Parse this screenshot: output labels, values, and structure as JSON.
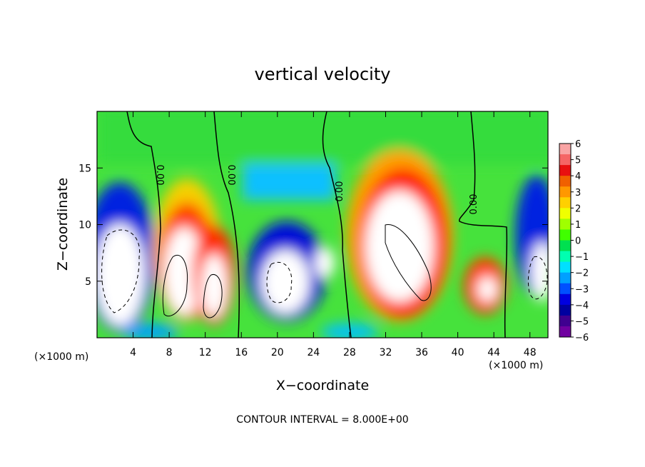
{
  "chart_data": {
    "type": "heatmap",
    "title": "vertical velocity",
    "xlabel": "X−coordinate",
    "ylabel": "Z−coordinate",
    "x_unit": "(×1000 m)",
    "z_unit": "(×1000 m)",
    "xlim": [
      0,
      50
    ],
    "ylim": [
      0,
      20
    ],
    "x_ticks": [
      4,
      8,
      12,
      16,
      20,
      24,
      28,
      32,
      36,
      40,
      44,
      48
    ],
    "y_ticks": [
      5,
      10,
      15
    ],
    "colorbar": {
      "ticks": [
        "6",
        "5",
        "4",
        "3",
        "2",
        "1",
        "0",
        "−1",
        "−2",
        "−3",
        "−4",
        "−5",
        "−6"
      ],
      "colors": [
        "#f9a4a4",
        "#f56565",
        "#e81010",
        "#f06000",
        "#ff9800",
        "#ffd000",
        "#f0ff00",
        "#a0ff00",
        "#40ff00",
        "#00e050",
        "#00ffb0",
        "#00e0ff",
        "#00a0ff",
        "#0050ff",
        "#0000e0",
        "#0000a0",
        "#400090",
        "#7000a0"
      ]
    },
    "features": [
      {
        "x": 2.8,
        "z": 6.5,
        "sign": -1,
        "strength": 1.3
      },
      {
        "x": 10.0,
        "z": 6.5,
        "sign": 1,
        "strength": 1.5
      },
      {
        "x": 14.0,
        "z": 5.0,
        "sign": 1,
        "strength": 1.2
      },
      {
        "x": 19.0,
        "z": 5.5,
        "sign": -1,
        "strength": 1.1
      },
      {
        "x": 34.0,
        "z": 7.0,
        "sign": 1,
        "strength": 1.6
      },
      {
        "x": 43.0,
        "z": 4.5,
        "sign": 1,
        "strength": 0.8
      },
      {
        "x": 49.0,
        "z": 5.5,
        "sign": -1,
        "strength": 1.0
      }
    ],
    "zero_contour_labels": [
      {
        "x": 7.2,
        "z": 14.0,
        "text": "0.00"
      },
      {
        "x": 14.3,
        "z": 14.0,
        "text": "0.00"
      },
      {
        "x": 27.8,
        "z": 13.0,
        "text": "0.00"
      },
      {
        "x": 42.4,
        "z": 12.0,
        "text": "0.00"
      }
    ],
    "contour_interval_text": "CONTOUR INTERVAL = 8.000E+00"
  }
}
